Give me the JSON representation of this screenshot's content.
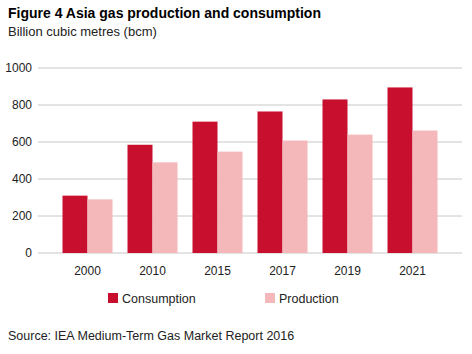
{
  "chart_data": {
    "type": "bar",
    "title": "Figure 4 Asia gas production and consumption",
    "subtitle": "Billion cubic metres (bcm)",
    "source": "Source: IEA Medium-Term Gas Market Report 2016",
    "categories": [
      "2000",
      "2010",
      "2015",
      "2017",
      "2019",
      "2021"
    ],
    "series": [
      {
        "name": "Consumption",
        "color": "#c8102e",
        "values": [
          310,
          585,
          710,
          765,
          830,
          895
        ]
      },
      {
        "name": "Production",
        "color": "#f4b8ba",
        "values": [
          290,
          490,
          548,
          608,
          640,
          662
        ]
      }
    ],
    "ylim": [
      0,
      1000
    ],
    "yticks": [
      0,
      200,
      400,
      600,
      800,
      1000
    ],
    "grid": true,
    "legend": "bottom"
  }
}
